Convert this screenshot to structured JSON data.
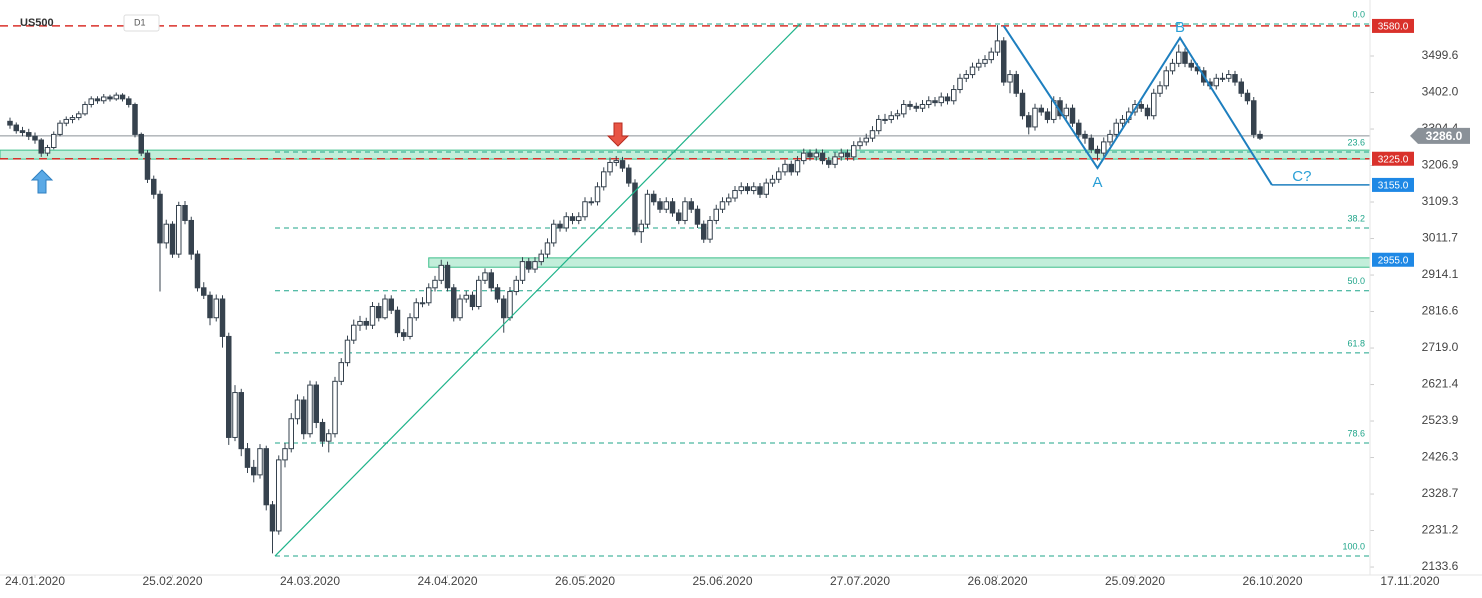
{
  "chart_data": {
    "type": "candlestick",
    "symbol": "US500",
    "timeframe": "D1",
    "up_color": "#ffffff",
    "down_color": "#36424e",
    "outline_color": "#36424e",
    "xlim": [
      -1.6,
      235.52
    ],
    "ylim": [
      2112.3,
      3649.3
    ],
    "xticks": [
      {
        "value": 4,
        "label": "24.01.2020"
      },
      {
        "value": 26,
        "label": "25.02.2020"
      },
      {
        "value": 48,
        "label": "24.03.2020"
      },
      {
        "value": 70,
        "label": "24.04.2020"
      },
      {
        "value": 92,
        "label": "26.05.2020"
      },
      {
        "value": 114,
        "label": "25.06.2020"
      },
      {
        "value": 136,
        "label": "27.07.2020"
      },
      {
        "value": 158,
        "label": "26.08.2020"
      },
      {
        "value": 180,
        "label": "25.09.2020"
      },
      {
        "value": 202,
        "label": "26.10.2020"
      },
      {
        "value": 224,
        "label": "17.11.2020"
      }
    ],
    "yticks": [
      {
        "value": 3499.6,
        "label": "3499.6"
      },
      {
        "value": 3402,
        "label": "3402.0"
      },
      {
        "value": 3304.4,
        "label": "3304.4"
      },
      {
        "value": 3206.9,
        "label": "3206.9"
      },
      {
        "value": 3109.3,
        "label": "3109.3"
      },
      {
        "value": 3011.7,
        "label": "3011.7"
      },
      {
        "value": 2914.1,
        "label": "2914.1"
      },
      {
        "value": 2816.6,
        "label": "2816.6"
      },
      {
        "value": 2719,
        "label": "2719.0"
      },
      {
        "value": 2621.4,
        "label": "2621.4"
      },
      {
        "value": 2523.9,
        "label": "2523.9"
      },
      {
        "value": 2426.3,
        "label": "2426.3"
      },
      {
        "value": 2328.7,
        "label": "2328.7"
      },
      {
        "value": 2231.2,
        "label": "2231.2"
      },
      {
        "value": 2133.6,
        "label": "2133.6"
      }
    ],
    "candles": [
      [
        3325,
        3335,
        3305,
        3315
      ],
      [
        3315,
        3322,
        3292,
        3300
      ],
      [
        3300,
        3310,
        3285,
        3295
      ],
      [
        3295,
        3305,
        3275,
        3285
      ],
      [
        3285,
        3295,
        3265,
        3275
      ],
      [
        3275,
        3280,
        3230,
        3240
      ],
      [
        3240,
        3262,
        3232,
        3255
      ],
      [
        3255,
        3298,
        3250,
        3290
      ],
      [
        3290,
        3328,
        3285,
        3320
      ],
      [
        3320,
        3338,
        3312,
        3330
      ],
      [
        3330,
        3342,
        3320,
        3335
      ],
      [
        3335,
        3352,
        3328,
        3345
      ],
      [
        3345,
        3378,
        3340,
        3370
      ],
      [
        3370,
        3392,
        3362,
        3385
      ],
      [
        3385,
        3392,
        3372,
        3380
      ],
      [
        3380,
        3398,
        3372,
        3390
      ],
      [
        3390,
        3396,
        3378,
        3385
      ],
      [
        3385,
        3402,
        3380,
        3395
      ],
      [
        3395,
        3400,
        3378,
        3385
      ],
      [
        3385,
        3392,
        3362,
        3370
      ],
      [
        3370,
        3375,
        3282,
        3290
      ],
      [
        3290,
        3295,
        3232,
        3240
      ],
      [
        3240,
        3248,
        3160,
        3170
      ],
      [
        3170,
        3180,
        3118,
        3130
      ],
      [
        3130,
        3140,
        2870,
        3000
      ],
      [
        3000,
        3062,
        2985,
        3050
      ],
      [
        3050,
        3058,
        2960,
        2970
      ],
      [
        2970,
        3110,
        2960,
        3100
      ],
      [
        3100,
        3112,
        3050,
        3060
      ],
      [
        3060,
        3070,
        2955,
        2970
      ],
      [
        2970,
        2980,
        2870,
        2880
      ],
      [
        2880,
        2895,
        2850,
        2860
      ],
      [
        2860,
        2870,
        2780,
        2800
      ],
      [
        2800,
        2862,
        2790,
        2850
      ],
      [
        2850,
        2860,
        2720,
        2750
      ],
      [
        2750,
        2760,
        2460,
        2480
      ],
      [
        2480,
        2620,
        2470,
        2600
      ],
      [
        2600,
        2610,
        2430,
        2450
      ],
      [
        2450,
        2465,
        2385,
        2400
      ],
      [
        2400,
        2420,
        2360,
        2380
      ],
      [
        2380,
        2462,
        2370,
        2450
      ],
      [
        2450,
        2458,
        2285,
        2300
      ],
      [
        2300,
        2310,
        2170,
        2230
      ],
      [
        2230,
        2432,
        2220,
        2420
      ],
      [
        2420,
        2465,
        2400,
        2450
      ],
      [
        2450,
        2545,
        2440,
        2530
      ],
      [
        2530,
        2595,
        2515,
        2580
      ],
      [
        2580,
        2590,
        2475,
        2490
      ],
      [
        2490,
        2632,
        2480,
        2620
      ],
      [
        2620,
        2630,
        2505,
        2520
      ],
      [
        2520,
        2530,
        2455,
        2470
      ],
      [
        2470,
        2502,
        2440,
        2490
      ],
      [
        2490,
        2642,
        2480,
        2630
      ],
      [
        2630,
        2692,
        2620,
        2680
      ],
      [
        2680,
        2752,
        2670,
        2740
      ],
      [
        2740,
        2795,
        2730,
        2780
      ],
      [
        2780,
        2805,
        2765,
        2790
      ],
      [
        2790,
        2800,
        2768,
        2780
      ],
      [
        2780,
        2842,
        2770,
        2830
      ],
      [
        2830,
        2840,
        2790,
        2800
      ],
      [
        2800,
        2862,
        2795,
        2850
      ],
      [
        2850,
        2860,
        2810,
        2820
      ],
      [
        2820,
        2830,
        2748,
        2760
      ],
      [
        2760,
        2770,
        2738,
        2750
      ],
      [
        2750,
        2812,
        2742,
        2800
      ],
      [
        2800,
        2852,
        2792,
        2840
      ],
      [
        2840,
        2855,
        2828,
        2840
      ],
      [
        2840,
        2892,
        2832,
        2880
      ],
      [
        2880,
        2912,
        2870,
        2900
      ],
      [
        2900,
        2955,
        2890,
        2940
      ],
      [
        2940,
        2950,
        2870,
        2880
      ],
      [
        2880,
        2890,
        2790,
        2800
      ],
      [
        2800,
        2862,
        2792,
        2850
      ],
      [
        2850,
        2872,
        2840,
        2860
      ],
      [
        2860,
        2870,
        2820,
        2830
      ],
      [
        2830,
        2912,
        2822,
        2900
      ],
      [
        2900,
        2932,
        2890,
        2920
      ],
      [
        2920,
        2930,
        2870,
        2880
      ],
      [
        2880,
        2890,
        2840,
        2850
      ],
      [
        2850,
        2860,
        2760,
        2800
      ],
      [
        2800,
        2882,
        2792,
        2870
      ],
      [
        2870,
        2912,
        2860,
        2900
      ],
      [
        2900,
        2962,
        2890,
        2950
      ],
      [
        2950,
        2960,
        2920,
        2930
      ],
      [
        2930,
        2962,
        2920,
        2950
      ],
      [
        2950,
        2982,
        2940,
        2970
      ],
      [
        2970,
        3012,
        2960,
        3000
      ],
      [
        3000,
        3062,
        2990,
        3050
      ],
      [
        3050,
        3060,
        3030,
        3040
      ],
      [
        3040,
        3082,
        3030,
        3070
      ],
      [
        3070,
        3080,
        3050,
        3060
      ],
      [
        3060,
        3082,
        3050,
        3070
      ],
      [
        3070,
        3122,
        3060,
        3110
      ],
      [
        3110,
        3122,
        3100,
        3110
      ],
      [
        3110,
        3162,
        3100,
        3150
      ],
      [
        3150,
        3202,
        3140,
        3190
      ],
      [
        3190,
        3228,
        3180,
        3215
      ],
      [
        3215,
        3232,
        3205,
        3220
      ],
      [
        3220,
        3230,
        3190,
        3200
      ],
      [
        3200,
        3210,
        3150,
        3160
      ],
      [
        3160,
        3170,
        3020,
        3030
      ],
      [
        3030,
        3062,
        3000,
        3050
      ],
      [
        3050,
        3142,
        3040,
        3130
      ],
      [
        3130,
        3140,
        3100,
        3110
      ],
      [
        3110,
        3120,
        3080,
        3090
      ],
      [
        3090,
        3122,
        3080,
        3110
      ],
      [
        3110,
        3120,
        3070,
        3080
      ],
      [
        3080,
        3090,
        3050,
        3060
      ],
      [
        3060,
        3122,
        3050,
        3110
      ],
      [
        3110,
        3120,
        3080,
        3090
      ],
      [
        3090,
        3100,
        3040,
        3050
      ],
      [
        3050,
        3060,
        3000,
        3010
      ],
      [
        3010,
        3072,
        3000,
        3060
      ],
      [
        3060,
        3102,
        3050,
        3090
      ],
      [
        3090,
        3122,
        3080,
        3110
      ],
      [
        3110,
        3132,
        3100,
        3120
      ],
      [
        3120,
        3152,
        3110,
        3140
      ],
      [
        3140,
        3162,
        3130,
        3150
      ],
      [
        3150,
        3160,
        3130,
        3140
      ],
      [
        3140,
        3162,
        3130,
        3150
      ],
      [
        3150,
        3160,
        3120,
        3130
      ],
      [
        3130,
        3172,
        3120,
        3160
      ],
      [
        3160,
        3182,
        3150,
        3170
      ],
      [
        3170,
        3202,
        3160,
        3190
      ],
      [
        3190,
        3222,
        3180,
        3210
      ],
      [
        3210,
        3220,
        3180,
        3190
      ],
      [
        3190,
        3232,
        3180,
        3220
      ],
      [
        3220,
        3252,
        3210,
        3240
      ],
      [
        3240,
        3250,
        3220,
        3230
      ],
      [
        3230,
        3252,
        3220,
        3240
      ],
      [
        3240,
        3250,
        3210,
        3220
      ],
      [
        3220,
        3230,
        3200,
        3210
      ],
      [
        3210,
        3242,
        3200,
        3230
      ],
      [
        3230,
        3252,
        3220,
        3240
      ],
      [
        3240,
        3250,
        3220,
        3230
      ],
      [
        3230,
        3272,
        3220,
        3260
      ],
      [
        3260,
        3282,
        3250,
        3270
      ],
      [
        3270,
        3292,
        3260,
        3280
      ],
      [
        3280,
        3312,
        3270,
        3300
      ],
      [
        3300,
        3342,
        3290,
        3330
      ],
      [
        3330,
        3345,
        3318,
        3330
      ],
      [
        3330,
        3352,
        3320,
        3340
      ],
      [
        3340,
        3356,
        3330,
        3345
      ],
      [
        3345,
        3382,
        3335,
        3370
      ],
      [
        3370,
        3380,
        3355,
        3365
      ],
      [
        3365,
        3375,
        3350,
        3360
      ],
      [
        3360,
        3382,
        3350,
        3370
      ],
      [
        3370,
        3392,
        3360,
        3380
      ],
      [
        3380,
        3390,
        3365,
        3375
      ],
      [
        3375,
        3402,
        3365,
        3390
      ],
      [
        3390,
        3400,
        3370,
        3380
      ],
      [
        3380,
        3422,
        3370,
        3410
      ],
      [
        3410,
        3452,
        3400,
        3440
      ],
      [
        3440,
        3462,
        3430,
        3450
      ],
      [
        3450,
        3482,
        3440,
        3470
      ],
      [
        3470,
        3492,
        3460,
        3480
      ],
      [
        3480,
        3502,
        3470,
        3490
      ],
      [
        3490,
        3522,
        3480,
        3510
      ],
      [
        3510,
        3582,
        3500,
        3540
      ],
      [
        3540,
        3550,
        3420,
        3430
      ],
      [
        3430,
        3462,
        3400,
        3450
      ],
      [
        3450,
        3460,
        3390,
        3400
      ],
      [
        3400,
        3410,
        3330,
        3340
      ],
      [
        3340,
        3350,
        3290,
        3310
      ],
      [
        3310,
        3372,
        3300,
        3360
      ],
      [
        3360,
        3370,
        3340,
        3350
      ],
      [
        3350,
        3360,
        3320,
        3330
      ],
      [
        3330,
        3392,
        3320,
        3380
      ],
      [
        3380,
        3390,
        3330,
        3340
      ],
      [
        3340,
        3372,
        3330,
        3360
      ],
      [
        3360,
        3370,
        3310,
        3320
      ],
      [
        3320,
        3330,
        3280,
        3290
      ],
      [
        3290,
        3300,
        3265,
        3280
      ],
      [
        3280,
        3290,
        3240,
        3250
      ],
      [
        3250,
        3260,
        3220,
        3240
      ],
      [
        3240,
        3282,
        3230,
        3270
      ],
      [
        3270,
        3302,
        3260,
        3290
      ],
      [
        3290,
        3332,
        3280,
        3320
      ],
      [
        3320,
        3342,
        3310,
        3330
      ],
      [
        3330,
        3362,
        3320,
        3350
      ],
      [
        3350,
        3382,
        3340,
        3370
      ],
      [
        3370,
        3380,
        3350,
        3360
      ],
      [
        3360,
        3370,
        3330,
        3340
      ],
      [
        3340,
        3412,
        3330,
        3400
      ],
      [
        3400,
        3432,
        3390,
        3420
      ],
      [
        3420,
        3472,
        3410,
        3460
      ],
      [
        3460,
        3492,
        3450,
        3480
      ],
      [
        3480,
        3530,
        3470,
        3510
      ],
      [
        3510,
        3520,
        3470,
        3480
      ],
      [
        3480,
        3490,
        3460,
        3470
      ],
      [
        3470,
        3480,
        3450,
        3460
      ],
      [
        3460,
        3470,
        3420,
        3430
      ],
      [
        3430,
        3440,
        3410,
        3420
      ],
      [
        3420,
        3452,
        3410,
        3440
      ],
      [
        3440,
        3455,
        3430,
        3440
      ],
      [
        3440,
        3462,
        3430,
        3450
      ],
      [
        3450,
        3460,
        3420,
        3430
      ],
      [
        3430,
        3440,
        3390,
        3400
      ],
      [
        3400,
        3410,
        3370,
        3380
      ],
      [
        3380,
        3390,
        3280,
        3290
      ],
      [
        3290,
        3300,
        3275,
        3280
      ]
    ],
    "levels": [
      {
        "value": 3580,
        "label": "3580.0",
        "color": "#d9312b",
        "line": "dashed"
      },
      {
        "value": 3286,
        "label": "3286.0",
        "color": "#8a9198",
        "line": "solid"
      },
      {
        "value": 3225,
        "label": "3225.0",
        "color": "#d9312b",
        "line": "dashed"
      },
      {
        "value": 3155,
        "label": "3155.0",
        "color": "#1e88e5",
        "line": "none"
      },
      {
        "value": 2955,
        "label": "2955.0",
        "color": "#1e88e5",
        "line": "none"
      }
    ],
    "zones": [
      {
        "from": 3224,
        "to": 3248,
        "start": -1.6
      },
      {
        "from": 2935,
        "to": 2960,
        "start": 67
      }
    ],
    "fib": {
      "color": "#1fa58a",
      "start": 42.4,
      "levels": [
        {
          "value": 3585,
          "label": "0.0"
        },
        {
          "value": 3243,
          "label": "23.6"
        },
        {
          "value": 3040,
          "label": "38.2"
        },
        {
          "value": 2872,
          "label": "50.0"
        },
        {
          "value": 2706,
          "label": "61.8"
        },
        {
          "value": 2465,
          "label": "78.6"
        },
        {
          "value": 2163,
          "label": "100.0"
        }
      ]
    },
    "trendline": {
      "color": "#1fb38a",
      "x": [
        42.4,
        126.4
      ],
      "y": [
        2163,
        3585
      ]
    },
    "pattern": {
      "color": "#1e7fbf",
      "x": [
        159,
        174,
        187.2,
        201.9
      ],
      "y": [
        3580,
        3200,
        3548,
        3155
      ],
      "labels": [
        null,
        "A",
        "B",
        "C?"
      ]
    }
  }
}
